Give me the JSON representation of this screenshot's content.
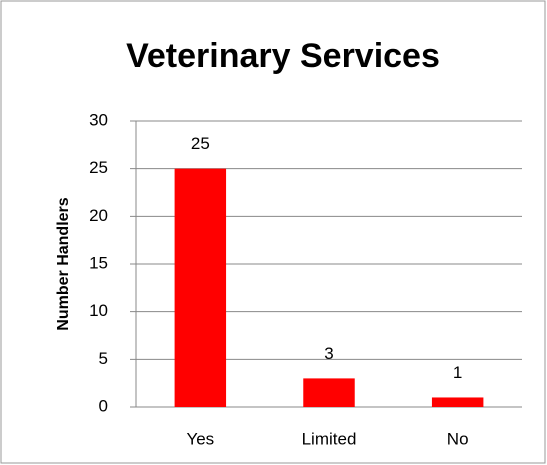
{
  "chart_data": {
    "type": "bar",
    "title": "Veterinary Services",
    "y_label": "Number Handlers",
    "categories": [
      "Yes",
      "Limited",
      "No"
    ],
    "values": [
      25,
      3,
      1
    ],
    "color": "#ff0000",
    "ylim": [
      0,
      30
    ],
    "yticks": [
      0,
      5,
      10,
      15,
      20,
      25,
      30
    ],
    "grid": true
  }
}
